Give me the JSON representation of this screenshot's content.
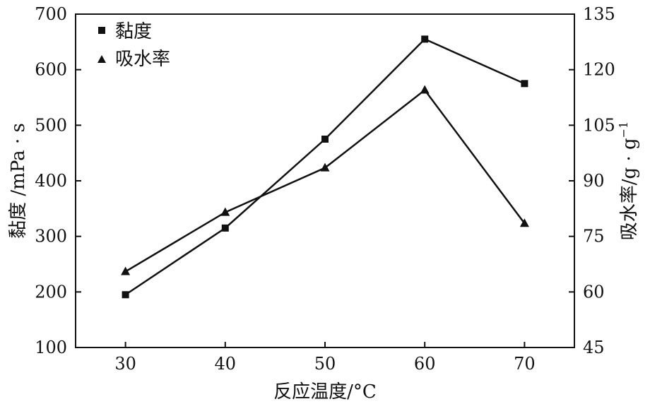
{
  "chart_data": {
    "type": "line",
    "x": [
      30,
      40,
      50,
      60,
      70
    ],
    "xlabel": "反应温度/°C",
    "ylabel_left": "黏度 /mPa · s",
    "ylabel_right": "吸水率/g · g",
    "ylabel_right_sup": "−1",
    "xlim": [
      25,
      75
    ],
    "ylim_left": [
      100,
      700
    ],
    "ylim_right": [
      45,
      135
    ],
    "xticks": [
      30,
      40,
      50,
      60,
      70
    ],
    "yticks_left": [
      100,
      200,
      300,
      400,
      500,
      600,
      700
    ],
    "yticks_right": [
      45,
      60,
      75,
      90,
      105,
      120,
      135
    ],
    "grid": false,
    "legend_position": "top-left",
    "series": [
      {
        "name": "黏度",
        "axis": "left",
        "marker": "square",
        "values": [
          195,
          315,
          475,
          655,
          575
        ]
      },
      {
        "name": "吸水率",
        "axis": "right",
        "marker": "triangle",
        "values": [
          65.5,
          81.5,
          93.5,
          114.5,
          78.5
        ]
      }
    ]
  }
}
